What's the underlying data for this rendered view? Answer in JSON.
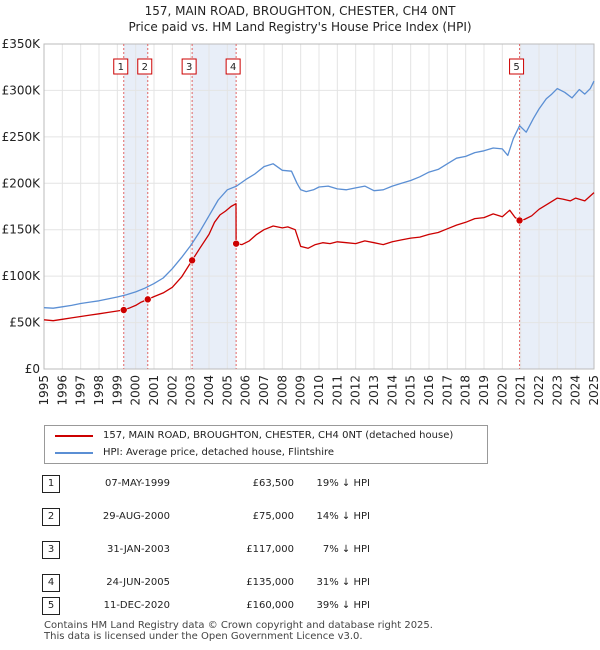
{
  "chart_data": {
    "type": "line",
    "title": "157, MAIN ROAD, BROUGHTON, CHESTER, CH4 0NT",
    "subtitle": "Price paid vs. HM Land Registry's House Price Index (HPI)",
    "xlabel": "",
    "ylabel": "",
    "xlim": [
      1995,
      2025
    ],
    "ylim": [
      0,
      350000
    ],
    "x_ticks": [
      "1995",
      "1996",
      "1997",
      "1998",
      "1999",
      "2000",
      "2001",
      "2002",
      "2003",
      "2004",
      "2005",
      "2006",
      "2007",
      "2008",
      "2009",
      "2010",
      "2011",
      "2012",
      "2013",
      "2014",
      "2015",
      "2016",
      "2017",
      "2018",
      "2019",
      "2020",
      "2021",
      "2022",
      "2023",
      "2024",
      "2025"
    ],
    "y_ticks": [
      {
        "value": 0,
        "label": "£0"
      },
      {
        "value": 50000,
        "label": "£50K"
      },
      {
        "value": 100000,
        "label": "£100K"
      },
      {
        "value": 150000,
        "label": "£150K"
      },
      {
        "value": 200000,
        "label": "£200K"
      },
      {
        "value": 250000,
        "label": "£250K"
      },
      {
        "value": 300000,
        "label": "£300K"
      },
      {
        "value": 350000,
        "label": "£350K"
      }
    ],
    "grid": true,
    "legend_position": "below",
    "series": [
      {
        "name": "157, MAIN ROAD, BROUGHTON, CHESTER, CH4 0NT (detached house)",
        "color": "#cc0000",
        "points": [
          [
            1995.0,
            53000
          ],
          [
            1995.5,
            52000
          ],
          [
            1996.0,
            53500
          ],
          [
            1996.5,
            55000
          ],
          [
            1997.0,
            56500
          ],
          [
            1997.5,
            58000
          ],
          [
            1998.0,
            59500
          ],
          [
            1998.5,
            61000
          ],
          [
            1999.0,
            62500
          ],
          [
            1999.35,
            63500
          ],
          [
            1999.7,
            66000
          ],
          [
            2000.0,
            68500
          ],
          [
            2000.3,
            72000
          ],
          [
            2000.66,
            75000
          ],
          [
            2001.0,
            78000
          ],
          [
            2001.5,
            82000
          ],
          [
            2002.0,
            88000
          ],
          [
            2002.5,
            99000
          ],
          [
            2003.08,
            117000
          ],
          [
            2003.5,
            130000
          ],
          [
            2004.0,
            145000
          ],
          [
            2004.3,
            158000
          ],
          [
            2004.6,
            166000
          ],
          [
            2004.9,
            170000
          ],
          [
            2005.2,
            175000
          ],
          [
            2005.47,
            178000
          ],
          [
            2005.48,
            135000
          ],
          [
            2005.8,
            134000
          ],
          [
            2006.2,
            138000
          ],
          [
            2006.6,
            145000
          ],
          [
            2007.0,
            150000
          ],
          [
            2007.5,
            154000
          ],
          [
            2008.0,
            152000
          ],
          [
            2008.3,
            153000
          ],
          [
            2008.7,
            150000
          ],
          [
            2009.0,
            132000
          ],
          [
            2009.4,
            130000
          ],
          [
            2009.8,
            134000
          ],
          [
            2010.2,
            136000
          ],
          [
            2010.6,
            135000
          ],
          [
            2011.0,
            137000
          ],
          [
            2011.5,
            136000
          ],
          [
            2012.0,
            135000
          ],
          [
            2012.5,
            138000
          ],
          [
            2013.0,
            136000
          ],
          [
            2013.5,
            134000
          ],
          [
            2014.0,
            137000
          ],
          [
            2014.5,
            139000
          ],
          [
            2015.0,
            141000
          ],
          [
            2015.5,
            142000
          ],
          [
            2016.0,
            145000
          ],
          [
            2016.5,
            147000
          ],
          [
            2017.0,
            151000
          ],
          [
            2017.5,
            155000
          ],
          [
            2018.0,
            158000
          ],
          [
            2018.5,
            162000
          ],
          [
            2019.0,
            163000
          ],
          [
            2019.5,
            167000
          ],
          [
            2020.0,
            164000
          ],
          [
            2020.4,
            171000
          ],
          [
            2020.7,
            163000
          ],
          [
            2020.94,
            160000
          ],
          [
            2021.2,
            161000
          ],
          [
            2021.6,
            165000
          ],
          [
            2022.0,
            172000
          ],
          [
            2022.5,
            178000
          ],
          [
            2023.0,
            184000
          ],
          [
            2023.3,
            183000
          ],
          [
            2023.7,
            181000
          ],
          [
            2024.0,
            184000
          ],
          [
            2024.5,
            181000
          ],
          [
            2025.0,
            190000
          ]
        ]
      },
      {
        "name": "HPI: Average price, detached house, Flintshire",
        "color": "#5b8fd4",
        "points": [
          [
            1995.0,
            66000
          ],
          [
            1995.5,
            65500
          ],
          [
            1996.0,
            67000
          ],
          [
            1996.5,
            68500
          ],
          [
            1997.0,
            70500
          ],
          [
            1997.5,
            72000
          ],
          [
            1998.0,
            73500
          ],
          [
            1998.5,
            75500
          ],
          [
            1999.0,
            77500
          ],
          [
            1999.5,
            80000
          ],
          [
            2000.0,
            83000
          ],
          [
            2000.5,
            87000
          ],
          [
            2001.0,
            92000
          ],
          [
            2001.5,
            98000
          ],
          [
            2002.0,
            108000
          ],
          [
            2002.5,
            120000
          ],
          [
            2003.0,
            133000
          ],
          [
            2003.5,
            148000
          ],
          [
            2004.0,
            165000
          ],
          [
            2004.5,
            182000
          ],
          [
            2005.0,
            193000
          ],
          [
            2005.5,
            197000
          ],
          [
            2006.0,
            204000
          ],
          [
            2006.5,
            210000
          ],
          [
            2007.0,
            218000
          ],
          [
            2007.5,
            221000
          ],
          [
            2008.0,
            214000
          ],
          [
            2008.5,
            213000
          ],
          [
            2008.8,
            200000
          ],
          [
            2009.0,
            193000
          ],
          [
            2009.3,
            191000
          ],
          [
            2009.7,
            193000
          ],
          [
            2010.0,
            196000
          ],
          [
            2010.5,
            197000
          ],
          [
            2011.0,
            194000
          ],
          [
            2011.5,
            193000
          ],
          [
            2012.0,
            195000
          ],
          [
            2012.5,
            197000
          ],
          [
            2013.0,
            192000
          ],
          [
            2013.5,
            193000
          ],
          [
            2014.0,
            197000
          ],
          [
            2014.5,
            200000
          ],
          [
            2015.0,
            203000
          ],
          [
            2015.5,
            207000
          ],
          [
            2016.0,
            212000
          ],
          [
            2016.5,
            215000
          ],
          [
            2017.0,
            221000
          ],
          [
            2017.5,
            227000
          ],
          [
            2018.0,
            229000
          ],
          [
            2018.5,
            233000
          ],
          [
            2019.0,
            235000
          ],
          [
            2019.5,
            238000
          ],
          [
            2020.0,
            237000
          ],
          [
            2020.3,
            230000
          ],
          [
            2020.6,
            248000
          ],
          [
            2020.94,
            262000
          ],
          [
            2021.3,
            255000
          ],
          [
            2021.7,
            270000
          ],
          [
            2022.0,
            280000
          ],
          [
            2022.4,
            291000
          ],
          [
            2022.7,
            296000
          ],
          [
            2023.0,
            302000
          ],
          [
            2023.4,
            298000
          ],
          [
            2023.8,
            292000
          ],
          [
            2024.2,
            301000
          ],
          [
            2024.5,
            296000
          ],
          [
            2024.8,
            302000
          ],
          [
            2025.0,
            310000
          ]
        ]
      }
    ],
    "sales": [
      {
        "id": "1",
        "x": 1999.35,
        "value": 63500
      },
      {
        "id": "2",
        "x": 2000.66,
        "value": 75000
      },
      {
        "id": "3",
        "x": 2003.08,
        "value": 117000
      },
      {
        "id": "4",
        "x": 2005.48,
        "value": 135000
      },
      {
        "id": "5",
        "x": 2020.94,
        "value": 160000
      }
    ],
    "shaded_periods": [
      [
        1999.35,
        2000.66
      ],
      [
        2003.08,
        2005.48
      ],
      [
        2020.94,
        2025
      ]
    ]
  },
  "legend": {
    "property_label": "157, MAIN ROAD, BROUGHTON, CHESTER, CH4 0NT (detached house)",
    "hpi_label": "HPI: Average price, detached house, Flintshire"
  },
  "table": {
    "rows": [
      {
        "num": "1",
        "date": "07-MAY-1999",
        "price": "£63,500",
        "hpi": "19% ↓ HPI"
      },
      {
        "num": "2",
        "date": "29-AUG-2000",
        "price": "£75,000",
        "hpi": "14% ↓ HPI"
      },
      {
        "num": "3",
        "date": "31-JAN-2003",
        "price": "£117,000",
        "hpi": "7% ↓ HPI"
      },
      {
        "num": "4",
        "date": "24-JUN-2005",
        "price": "£135,000",
        "hpi": "31% ↓ HPI"
      },
      {
        "num": "5",
        "date": "11-DEC-2020",
        "price": "£160,000",
        "hpi": "39% ↓ HPI"
      }
    ]
  },
  "footer": {
    "line1": "Contains HM Land Registry data © Crown copyright and database right 2025.",
    "line2": "This data is licensed under the Open Government Licence v3.0."
  },
  "colors": {
    "property": "#cc0000",
    "hpi": "#5b8fd4",
    "shade": "#e8eef8",
    "grid": "#e4e4e4"
  }
}
